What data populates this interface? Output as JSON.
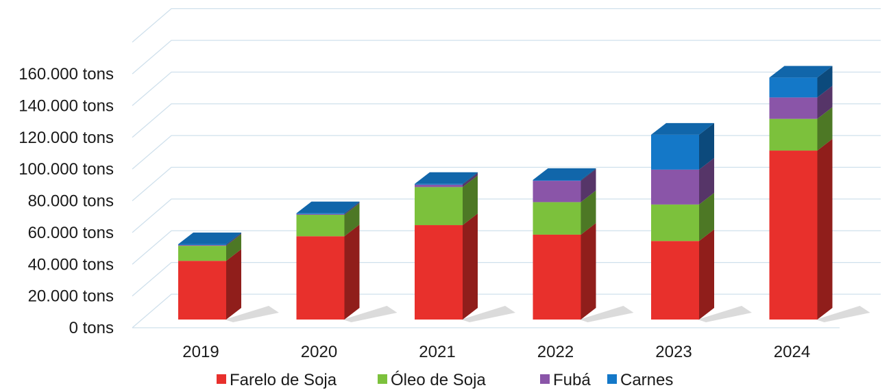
{
  "chart_data": {
    "type": "bar",
    "stacked": true,
    "style": "3d",
    "categories": [
      "2019",
      "2020",
      "2021",
      "2022",
      "2023",
      "2024"
    ],
    "series": [
      {
        "name": "Farelo de Soja",
        "color": "#e8302c",
        "values": [
          37000,
          52500,
          59500,
          53500,
          49500,
          106500
        ]
      },
      {
        "name": "Óleo de Soja",
        "color": "#7cc13c",
        "values": [
          9500,
          13500,
          24000,
          20500,
          23000,
          20000
        ]
      },
      {
        "name": "Fubá",
        "color": "#8a55a8",
        "values": [
          500,
          500,
          1500,
          13500,
          22000,
          13500
        ]
      },
      {
        "name": "Carnes",
        "color": "#1478c8",
        "values": [
          500,
          500,
          500,
          500,
          22000,
          12500
        ]
      }
    ],
    "y_ticks": [
      "0 tons",
      "20.000 tons",
      "40.000 tons",
      "60.000 tons",
      "80.000 tons",
      "100.000 tons",
      "120.000 tons",
      "140.000 tons",
      "160.000 tons"
    ],
    "ylim": [
      0,
      160000
    ],
    "ylabel": "",
    "xlabel": "",
    "title": "",
    "grid": true,
    "legend_position": "bottom"
  }
}
